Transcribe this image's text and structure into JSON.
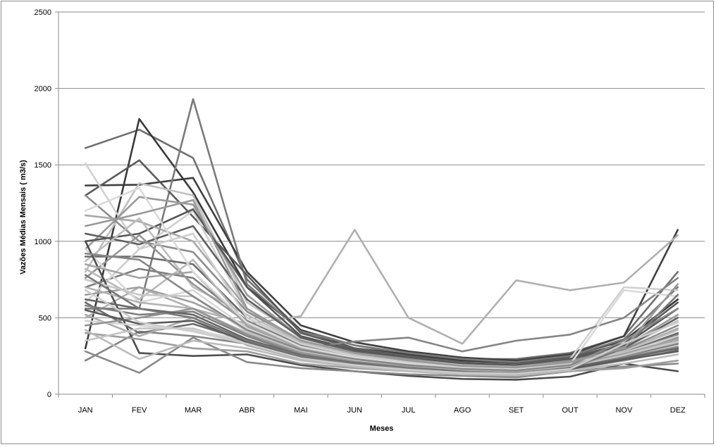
{
  "chart_data": {
    "type": "line",
    "title": "",
    "xlabel": "Meses",
    "ylabel": "Vazões Médias Mensais ( m3/s)",
    "categories": [
      "JAN",
      "FEV",
      "MAR",
      "ABR",
      "MAI",
      "JUN",
      "JUL",
      "AGO",
      "SET",
      "OUT",
      "NOV",
      "DEZ"
    ],
    "ylim": [
      0,
      2500
    ],
    "yticks": [
      0,
      500,
      1000,
      1500,
      2000,
      2500
    ],
    "grid": true,
    "legend": "none",
    "series": [
      {
        "color": "#707070",
        "values": [
          1610,
          1730,
          1545,
          750,
          420,
          320,
          260,
          230,
          230,
          270,
          380,
          800
        ]
      },
      {
        "color": "#404040",
        "values": [
          1365,
          1370,
          1415,
          800,
          450,
          340,
          280,
          240,
          220,
          260,
          380,
          1075
        ]
      },
      {
        "color": "#3a3a3a",
        "values": [
          300,
          1800,
          1320,
          700,
          420,
          300,
          260,
          220,
          210,
          250,
          350,
          620
        ]
      },
      {
        "color": "#7a7a7a",
        "values": [
          560,
          560,
          1930,
          720,
          410,
          320,
          270,
          230,
          210,
          250,
          360,
          700
        ]
      },
      {
        "color": "#b0b0b0",
        "values": [
          500,
          700,
          560,
          460,
          510,
          1075,
          500,
          330,
          745,
          680,
          730,
          1040
        ]
      },
      {
        "color": "#5a5a5a",
        "values": [
          1300,
          1530,
          1160,
          780,
          400,
          300,
          250,
          210,
          200,
          240,
          330,
          600
        ]
      },
      {
        "color": "#d0d0d0",
        "values": [
          1510,
          950,
          1200,
          540,
          360,
          280,
          230,
          200,
          190,
          230,
          700,
          680
        ]
      },
      {
        "color": "#c0c0c0",
        "values": [
          800,
          1380,
          1300,
          600,
          380,
          290,
          240,
          200,
          190,
          220,
          300,
          480
        ]
      },
      {
        "color": "#9a9a9a",
        "values": [
          950,
          1290,
          1240,
          650,
          370,
          290,
          240,
          200,
          190,
          230,
          310,
          520
        ]
      },
      {
        "color": "#555555",
        "values": [
          1000,
          1050,
          1210,
          700,
          380,
          290,
          240,
          200,
          190,
          230,
          320,
          560
        ]
      },
      {
        "color": "#858585",
        "values": [
          220,
          410,
          380,
          330,
          300,
          345,
          370,
          280,
          350,
          390,
          500,
          760
        ]
      },
      {
        "color": "#5f5f5f",
        "values": [
          1050,
          980,
          1100,
          620,
          370,
          280,
          230,
          190,
          180,
          220,
          300,
          500
        ]
      },
      {
        "color": "#8d8d8d",
        "values": [
          1300,
          1000,
          930,
          540,
          350,
          270,
          230,
          190,
          180,
          220,
          290,
          450
        ]
      },
      {
        "color": "#a8a8a8",
        "values": [
          1170,
          1130,
          1000,
          560,
          340,
          260,
          220,
          190,
          180,
          210,
          280,
          430
        ]
      },
      {
        "color": "#bdbdbd",
        "values": [
          870,
          1150,
          700,
          520,
          340,
          260,
          220,
          190,
          170,
          210,
          280,
          420
        ]
      },
      {
        "color": "#6b6b6b",
        "values": [
          900,
          900,
          850,
          500,
          330,
          250,
          210,
          180,
          170,
          210,
          270,
          400
        ]
      },
      {
        "color": "#7d7d7d",
        "values": [
          700,
          820,
          760,
          480,
          320,
          250,
          210,
          180,
          170,
          200,
          260,
          390
        ]
      },
      {
        "color": "#cfcfcf",
        "values": [
          600,
          950,
          1050,
          500,
          330,
          250,
          210,
          180,
          170,
          210,
          270,
          380
        ]
      },
      {
        "color": "#969696",
        "values": [
          760,
          1040,
          720,
          470,
          310,
          240,
          200,
          170,
          160,
          200,
          250,
          370
        ]
      },
      {
        "color": "#b9b9b9",
        "values": [
          820,
          620,
          880,
          460,
          300,
          240,
          200,
          170,
          160,
          200,
          250,
          360
        ]
      },
      {
        "color": "#a0a0a0",
        "values": [
          650,
          700,
          600,
          440,
          300,
          230,
          195,
          165,
          155,
          190,
          240,
          350
        ]
      },
      {
        "color": "#d8d8d8",
        "values": [
          950,
          600,
          680,
          430,
          290,
          230,
          190,
          165,
          155,
          190,
          240,
          340
        ]
      },
      {
        "color": "#4d4d4d",
        "values": [
          1000,
          270,
          250,
          260,
          190,
          150,
          120,
          100,
          95,
          115,
          200,
          150
        ]
      },
      {
        "color": "#8a8a8a",
        "values": [
          280,
          140,
          370,
          210,
          170,
          150,
          130,
          120,
          110,
          150,
          180,
          200
        ]
      },
      {
        "color": "#9e9e9e",
        "values": [
          400,
          360,
          300,
          280,
          200,
          170,
          150,
          130,
          120,
          150,
          170,
          220
        ]
      },
      {
        "color": "#6d6d6d",
        "values": [
          600,
          400,
          460,
          350,
          250,
          200,
          160,
          140,
          130,
          170,
          220,
          290
        ]
      },
      {
        "color": "#acacac",
        "values": [
          520,
          380,
          500,
          320,
          230,
          190,
          160,
          140,
          130,
          160,
          220,
          300
        ]
      },
      {
        "color": "#c4c4c4",
        "values": [
          350,
          430,
          430,
          330,
          240,
          200,
          170,
          150,
          140,
          170,
          230,
          310
        ]
      },
      {
        "color": "#d4d4d4",
        "values": [
          480,
          450,
          420,
          350,
          260,
          210,
          175,
          150,
          145,
          175,
          240,
          320
        ]
      },
      {
        "color": "#7e7e7e",
        "values": [
          580,
          520,
          540,
          380,
          260,
          210,
          180,
          155,
          145,
          180,
          250,
          330
        ]
      },
      {
        "color": "#b4b4b4",
        "values": [
          700,
          600,
          560,
          400,
          280,
          220,
          185,
          160,
          150,
          185,
          260,
          340
        ]
      },
      {
        "color": "#929292",
        "values": [
          450,
          500,
          560,
          390,
          270,
          215,
          180,
          155,
          145,
          180,
          240,
          310
        ]
      },
      {
        "color": "#666666",
        "values": [
          620,
          560,
          520,
          360,
          255,
          205,
          170,
          150,
          140,
          175,
          235,
          300
        ]
      },
      {
        "color": "#c8c8c8",
        "values": [
          750,
          650,
          640,
          410,
          285,
          225,
          190,
          160,
          150,
          185,
          255,
          345
        ]
      },
      {
        "color": "#a4a4a4",
        "values": [
          850,
          760,
          800,
          450,
          300,
          235,
          195,
          165,
          155,
          190,
          265,
          360
        ]
      },
      {
        "color": "#bbbbbb",
        "values": [
          420,
          230,
          350,
          300,
          220,
          180,
          150,
          130,
          125,
          155,
          200,
          260
        ]
      },
      {
        "color": "#5c5c5c",
        "values": [
          550,
          460,
          480,
          340,
          240,
          195,
          165,
          145,
          135,
          165,
          225,
          280
        ]
      },
      {
        "color": "#dadada",
        "values": [
          1200,
          1350,
          800,
          470,
          310,
          240,
          200,
          170,
          160,
          195,
          680,
          640
        ]
      },
      {
        "color": "#888888",
        "values": [
          920,
          880,
          640,
          420,
          290,
          230,
          190,
          165,
          155,
          190,
          350,
          560
        ]
      },
      {
        "color": "#777777",
        "values": [
          780,
          560,
          500,
          350,
          250,
          200,
          170,
          145,
          140,
          170,
          300,
          650
        ]
      },
      {
        "color": "#999999",
        "values": [
          1100,
          1180,
          1270,
          560,
          350,
          270,
          220,
          185,
          175,
          210,
          300,
          720
        ]
      },
      {
        "color": "#cccccc",
        "values": [
          680,
          470,
          410,
          330,
          235,
          190,
          160,
          140,
          135,
          165,
          330,
          470
        ]
      }
    ]
  }
}
